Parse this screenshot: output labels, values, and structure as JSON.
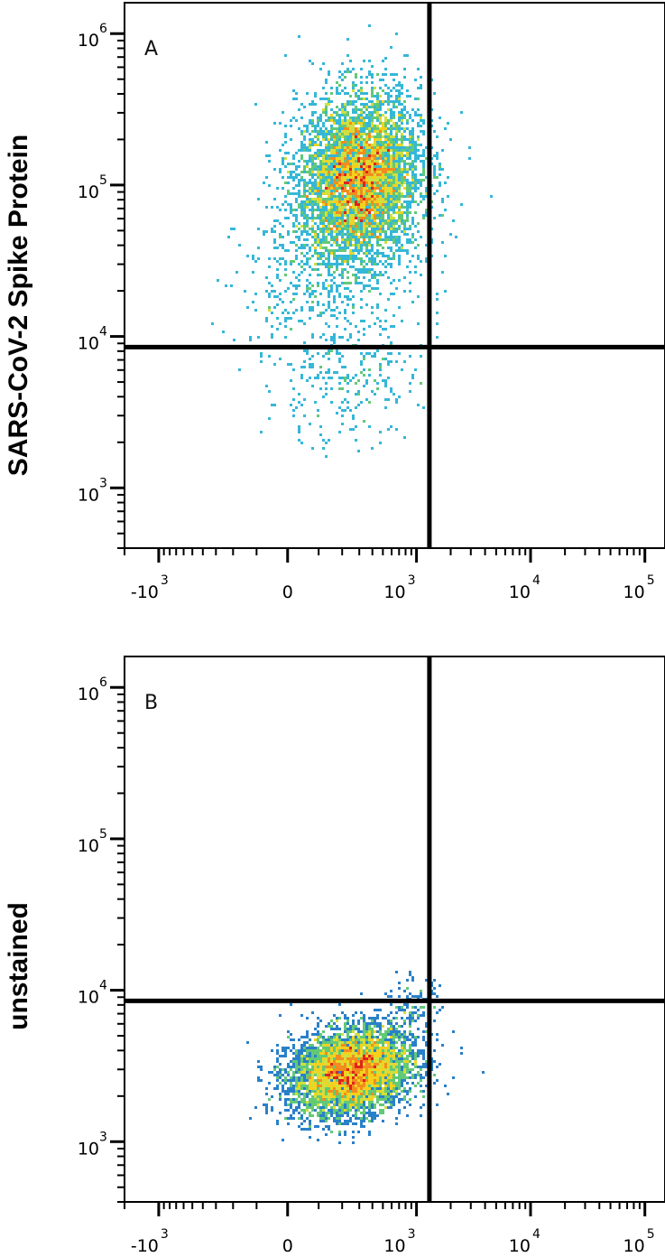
{
  "chart_data": [
    {
      "type": "scatter",
      "panel_label": "A",
      "ylabel": "SARS-CoV-2 Spike Protein",
      "xlabel": "",
      "x_scale": "biexponential",
      "y_scale": "log",
      "xlim": [
        -2000,
        150000
      ],
      "ylim": [
        400,
        1600000
      ],
      "x_tick_labels": [
        {
          "base": "-10",
          "exp": "3",
          "value": -1000
        },
        {
          "base": "0",
          "exp": "",
          "value": 0
        },
        {
          "base": "10",
          "exp": "3",
          "value": 1000
        },
        {
          "base": "10",
          "exp": "4",
          "value": 10000
        },
        {
          "base": "10",
          "exp": "5",
          "value": 100000
        }
      ],
      "y_tick_labels": [
        {
          "base": "10",
          "exp": "3",
          "value": 1000
        },
        {
          "base": "10",
          "exp": "4",
          "value": 10000
        },
        {
          "base": "10",
          "exp": "5",
          "value": 100000
        },
        {
          "base": "10",
          "exp": "6",
          "value": 1000000
        }
      ],
      "quadrant_gate": {
        "x": 1300,
        "y": 8500
      },
      "populations": [
        {
          "center_x": 300,
          "center_y": 110000,
          "count": 5200,
          "spread_x": 280,
          "spread_y_log10": 0.28
        },
        {
          "center_x": 150,
          "center_y": 25000,
          "count": 500,
          "spread_x": 300,
          "spread_y_log10": 0.3
        },
        {
          "center_x": 200,
          "center_y": 4500,
          "count": 220,
          "spread_x": 280,
          "spread_y_log10": 0.18
        }
      ],
      "density_colors": [
        "#3b4cc0",
        "#2a80c8",
        "#35b7d8",
        "#62c977",
        "#cfe040",
        "#f5d11c",
        "#f28c1e",
        "#e0231c"
      ]
    },
    {
      "type": "scatter",
      "panel_label": "B",
      "ylabel": "unstained",
      "xlabel": "",
      "x_scale": "biexponential",
      "y_scale": "log",
      "xlim": [
        -2000,
        150000
      ],
      "ylim": [
        400,
        1600000
      ],
      "x_tick_labels": [
        {
          "base": "-10",
          "exp": "3",
          "value": -1000
        },
        {
          "base": "0",
          "exp": "",
          "value": 0
        },
        {
          "base": "10",
          "exp": "3",
          "value": 1000
        },
        {
          "base": "10",
          "exp": "4",
          "value": 10000
        },
        {
          "base": "10",
          "exp": "5",
          "value": 100000
        }
      ],
      "y_tick_labels": [
        {
          "base": "10",
          "exp": "3",
          "value": 1000
        },
        {
          "base": "10",
          "exp": "4",
          "value": 10000
        },
        {
          "base": "10",
          "exp": "5",
          "value": 100000
        },
        {
          "base": "10",
          "exp": "6",
          "value": 1000000
        }
      ],
      "quadrant_gate": {
        "x": 1300,
        "y": 8500
      },
      "populations": [
        {
          "center_x": 250,
          "center_y": 2900,
          "count": 5200,
          "spread_x": 240,
          "spread_y_log10": 0.14
        },
        {
          "center_x": 900,
          "center_y": 7500,
          "count": 120,
          "spread_x": 300,
          "spread_y_log10": 0.1
        }
      ],
      "density_colors": [
        "#3b4cc0",
        "#2a80c8",
        "#35b7d8",
        "#62c977",
        "#cfe040",
        "#f5d11c",
        "#f28c1e",
        "#e0231c"
      ]
    }
  ]
}
